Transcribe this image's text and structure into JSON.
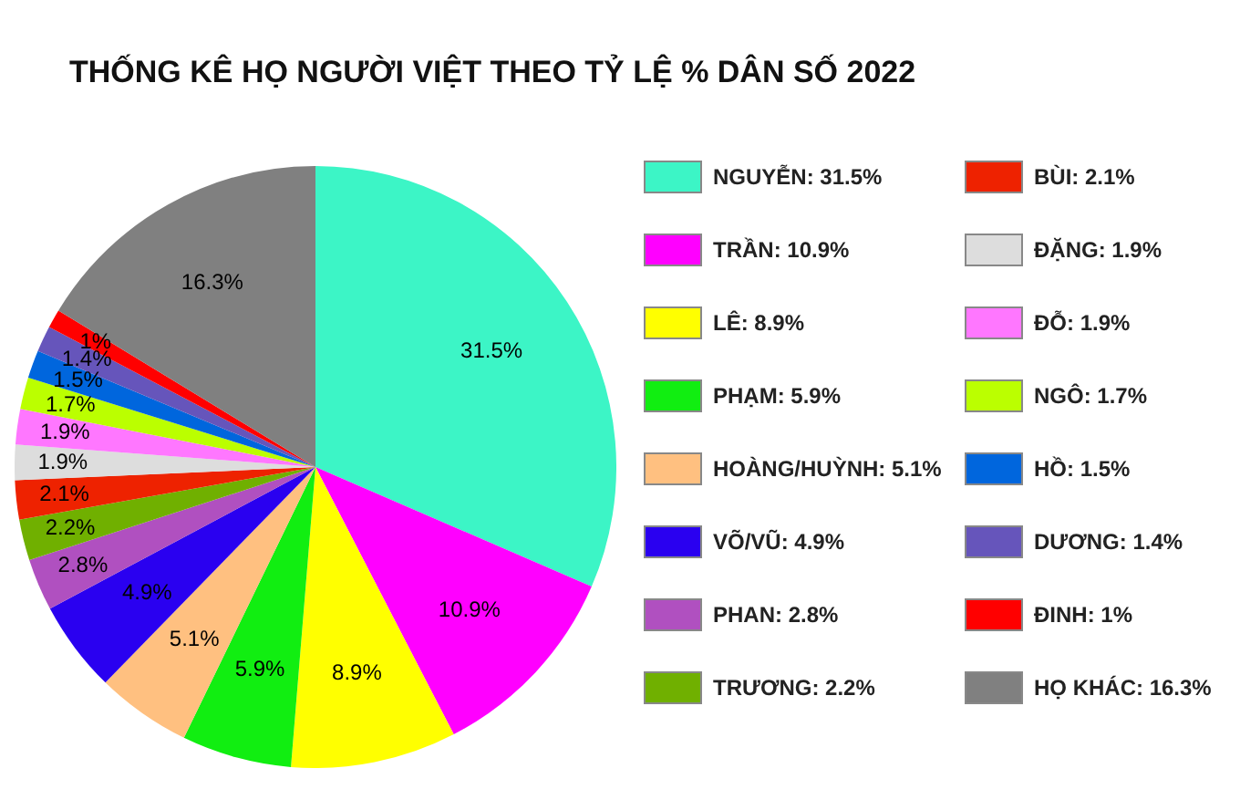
{
  "chart_data": {
    "type": "pie",
    "title": "THỐNG KÊ HỌ NGƯỜI VIỆT THEO TỶ LỆ % DÂN SỐ 2022",
    "categories": [
      "NGUYỄN",
      "TRẦN",
      "LÊ",
      "PHẠM",
      "HOÀNG/HUỲNH",
      "VÕ/VŨ",
      "PHAN",
      "TRƯƠNG",
      "BÙI",
      "ĐẶNG",
      "ĐỖ",
      "NGÔ",
      "HỒ",
      "DƯƠNG",
      "ĐINH",
      "HỌ KHÁC"
    ],
    "values": [
      31.5,
      10.9,
      8.9,
      5.9,
      5.1,
      4.9,
      2.8,
      2.2,
      2.1,
      1.9,
      1.9,
      1.7,
      1.5,
      1.4,
      1,
      16.3
    ],
    "value_labels": [
      "31.5%",
      "10.9%",
      "8.9%",
      "5.9%",
      "5.1%",
      "4.9%",
      "2.8%",
      "2.2%",
      "2.1%",
      "1.9%",
      "1.9%",
      "1.7%",
      "1.5%",
      "1.4%",
      "1%",
      "16.3%"
    ],
    "colors": [
      "#3cf5c6",
      "#ff00ff",
      "#ffff00",
      "#11ee11",
      "#ffc080",
      "#2a00f0",
      "#b050c0",
      "#70b000",
      "#ee2200",
      "#dddddd",
      "#ff77ff",
      "#bbff00",
      "#0066dd",
      "#6655bb",
      "#ff0000",
      "#808080"
    ],
    "legend": "right"
  }
}
